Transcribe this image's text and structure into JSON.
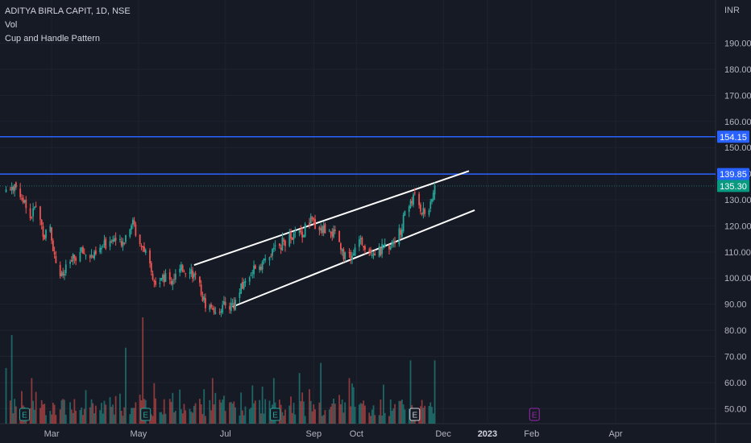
{
  "legend": {
    "symbol_line": "ADITYA BIRLA CAPIT, 1D, NSE",
    "volume_label": "Vol",
    "indicator_label": "Cup and Handle Pattern"
  },
  "currency": "INR",
  "colors": {
    "background": "#161a25",
    "grid": "#1f2330",
    "up": "#26a69a",
    "down": "#ef5350",
    "level_line": "#2962ff",
    "trendline": "#ffffff",
    "last_price_badge": "#089981",
    "earnings_marker": "#26a69a",
    "earnings_future": "#9c27b0"
  },
  "chart_data": {
    "type": "candlestick",
    "price_axis": {
      "ticks": [
        "190.00",
        "180.00",
        "170.00",
        "160.00",
        "150.00",
        "140.00",
        "130.00",
        "120.00",
        "110.00",
        "100.00",
        "90.00",
        "80.00",
        "70.00",
        "60.00",
        "50.00"
      ],
      "range": [
        40,
        200
      ]
    },
    "time_axis": {
      "ticks": [
        {
          "label": "Mar",
          "bold": false
        },
        {
          "label": "May",
          "bold": false
        },
        {
          "label": "Jul",
          "bold": false
        },
        {
          "label": "Sep",
          "bold": false
        },
        {
          "label": "Oct",
          "bold": false
        },
        {
          "label": "Dec",
          "bold": false
        },
        {
          "label": "2023",
          "bold": true
        },
        {
          "label": "Feb",
          "bold": false
        },
        {
          "label": "Apr",
          "bold": false
        }
      ]
    },
    "horizontal_levels": [
      {
        "value": 154.15,
        "label": "154.15"
      },
      {
        "value": 139.85,
        "label": "139.85"
      }
    ],
    "last_price": {
      "value": 135.3,
      "label": "135.30"
    },
    "trendlines": [
      {
        "name": "upper channel",
        "start": {
          "date": "2022-06-09",
          "price": 105
        },
        "end": {
          "date": "2022-12-19",
          "price": 141
        }
      },
      {
        "name": "lower channel",
        "start": {
          "date": "2022-07-06",
          "price": 89
        },
        "end": {
          "date": "2022-12-23",
          "price": 126
        }
      }
    ],
    "earnings_markers": [
      {
        "label": "E",
        "date": "2022-02-10",
        "style": "past"
      },
      {
        "label": "E",
        "date": "2022-05-06",
        "style": "past"
      },
      {
        "label": "E",
        "date": "2022-08-05",
        "style": "past"
      },
      {
        "label": "E",
        "date": "2022-11-11",
        "style": "current"
      },
      {
        "label": "E",
        "date": "2023-02-03",
        "style": "future"
      }
    ],
    "price_path": [
      [
        "2022-01-28",
        134
      ],
      [
        "2022-02-03",
        136
      ],
      [
        "2022-02-09",
        130
      ],
      [
        "2022-02-14",
        123
      ],
      [
        "2022-02-18",
        128
      ],
      [
        "2022-02-24",
        116
      ],
      [
        "2022-02-28",
        120
      ],
      [
        "2022-03-03",
        108
      ],
      [
        "2022-03-08",
        100
      ],
      [
        "2022-03-14",
        106
      ],
      [
        "2022-03-22",
        110
      ],
      [
        "2022-03-31",
        108
      ],
      [
        "2022-04-06",
        112
      ],
      [
        "2022-04-13",
        116
      ],
      [
        "2022-04-19",
        112
      ],
      [
        "2022-04-26",
        122
      ],
      [
        "2022-04-29",
        118
      ],
      [
        "2022-05-04",
        112
      ],
      [
        "2022-05-09",
        104
      ],
      [
        "2022-05-12",
        98
      ],
      [
        "2022-05-17",
        101
      ],
      [
        "2022-05-24",
        99
      ],
      [
        "2022-05-31",
        103
      ],
      [
        "2022-06-06",
        104
      ],
      [
        "2022-06-13",
        96
      ],
      [
        "2022-06-17",
        90
      ],
      [
        "2022-06-23",
        88
      ],
      [
        "2022-06-30",
        89
      ],
      [
        "2022-07-07",
        90
      ],
      [
        "2022-07-14",
        98
      ],
      [
        "2022-07-21",
        104
      ],
      [
        "2022-07-28",
        106
      ],
      [
        "2022-08-04",
        110
      ],
      [
        "2022-08-11",
        114
      ],
      [
        "2022-08-18",
        116
      ],
      [
        "2022-08-25",
        118
      ],
      [
        "2022-08-30",
        122
      ],
      [
        "2022-09-06",
        119
      ],
      [
        "2022-09-13",
        118
      ],
      [
        "2022-09-19",
        114
      ],
      [
        "2022-09-23",
        108
      ],
      [
        "2022-09-29",
        110
      ],
      [
        "2022-10-05",
        114
      ],
      [
        "2022-10-11",
        111
      ],
      [
        "2022-10-17",
        110
      ],
      [
        "2022-10-24",
        113
      ],
      [
        "2022-10-31",
        117
      ],
      [
        "2022-11-04",
        124
      ],
      [
        "2022-11-08",
        130
      ],
      [
        "2022-11-11",
        131
      ],
      [
        "2022-11-15",
        127
      ],
      [
        "2022-11-18",
        125
      ],
      [
        "2022-11-22",
        127
      ],
      [
        "2022-11-25",
        135.3
      ]
    ],
    "volume_spikes": [
      [
        "2022-01-24",
        48
      ],
      [
        "2022-01-28",
        62
      ],
      [
        "2022-02-01",
        75
      ],
      [
        "2022-02-15",
        58
      ],
      [
        "2022-04-22",
        70
      ],
      [
        "2022-05-04",
        82
      ],
      [
        "2022-05-12",
        56
      ],
      [
        "2022-06-22",
        58
      ],
      [
        "2022-08-04",
        58
      ],
      [
        "2022-08-22",
        60
      ],
      [
        "2022-09-06",
        64
      ],
      [
        "2022-09-26",
        58
      ],
      [
        "2022-11-08",
        65
      ],
      [
        "2022-11-25",
        65
      ]
    ]
  }
}
